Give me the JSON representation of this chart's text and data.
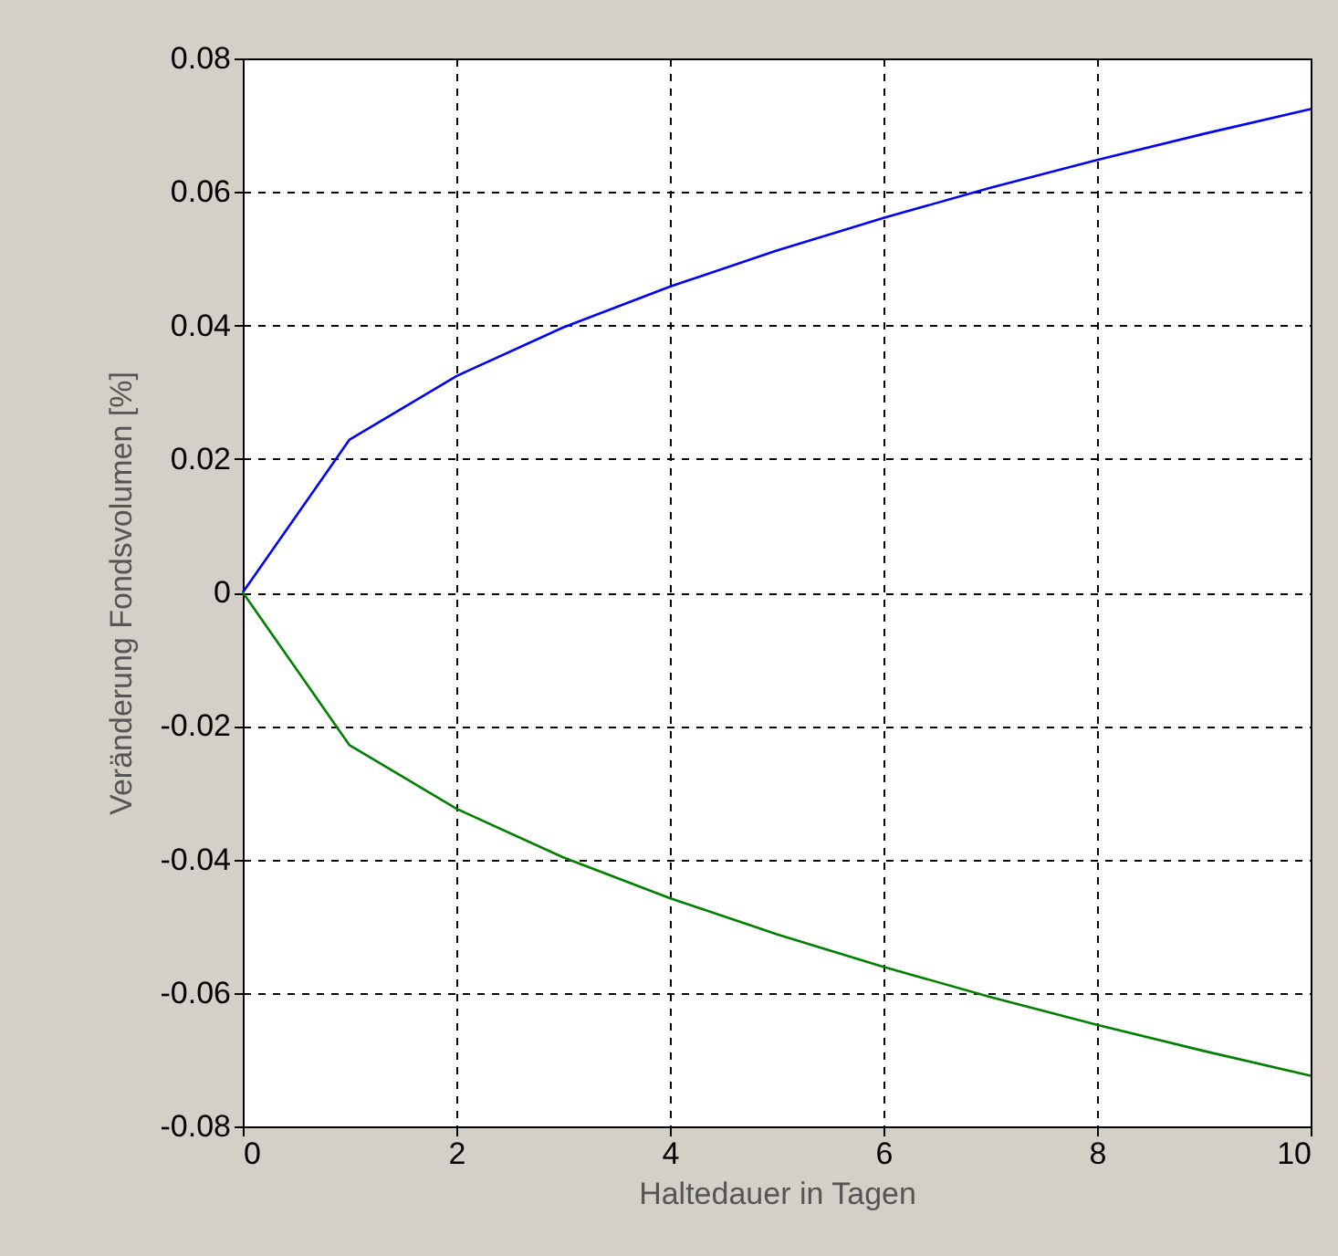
{
  "chart_data": {
    "type": "line",
    "xlabel": "Haltedauer in Tagen",
    "ylabel": "Veränderung Fondsvolumen [%]",
    "x": [
      0,
      1,
      2,
      3,
      4,
      5,
      6,
      7,
      8,
      9,
      10
    ],
    "series": [
      {
        "color": "#0000ff",
        "values": [
          0,
          0.0229,
          0.0324,
          0.0397,
          0.0458,
          0.0512,
          0.0561,
          0.0606,
          0.0648,
          0.0687,
          0.0724
        ]
      },
      {
        "color": "#008000",
        "values": [
          0,
          -0.0229,
          -0.0324,
          -0.0397,
          -0.0458,
          -0.0512,
          -0.0561,
          -0.0606,
          -0.0648,
          -0.0687,
          -0.0724
        ]
      }
    ],
    "xlim": [
      0,
      10
    ],
    "ylim": [
      -0.08,
      0.08
    ],
    "xticks": [
      0,
      2,
      4,
      6,
      8,
      10
    ],
    "yticks": [
      -0.08,
      -0.06,
      -0.04,
      -0.02,
      0,
      0.02,
      0.04,
      0.06,
      0.08
    ],
    "grid": true
  }
}
